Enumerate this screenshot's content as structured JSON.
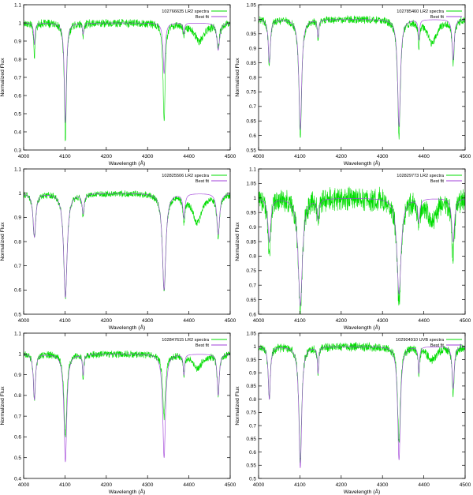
{
  "colors": {
    "observed": "#00dd00",
    "fit": "#a040d8",
    "fit_overlap": "#7a8ab4",
    "axis": "#000000"
  },
  "chart_data": [
    {
      "type": "line",
      "xlabel": "Wavelength (Å)",
      "ylabel": "Normalized Flux",
      "xlim": [
        4000,
        4500
      ],
      "ylim": [
        0.3,
        1.1
      ],
      "xticks": [
        4000,
        4100,
        4200,
        4300,
        4400,
        4500
      ],
      "yticks": [
        0.3,
        0.4,
        0.5,
        0.6,
        0.7,
        0.8,
        0.9,
        1,
        1.1
      ],
      "legend_position": "top-right",
      "noise": 0.02,
      "series": [
        {
          "name": "102766635 LR2 spectra",
          "role": "observed"
        },
        {
          "name": "Best fit",
          "role": "fit"
        }
      ],
      "lines": [
        {
          "center": 4026,
          "depth_fit": 0.12,
          "depth_obs": 0.2,
          "width": 2
        },
        {
          "center": 4101,
          "depth_fit": 0.55,
          "depth_obs": 0.65,
          "width": 3
        },
        {
          "center": 4144,
          "depth_fit": 0.06,
          "depth_obs": 0.07,
          "width": 2
        },
        {
          "center": 4340,
          "depth_fit": 0.28,
          "depth_obs": 0.55,
          "width": 3
        },
        {
          "center": 4388,
          "depth_fit": 0.06,
          "depth_obs": 0.06,
          "width": 2
        },
        {
          "center": 4425,
          "depth_fit": 0.0,
          "depth_obs": 0.1,
          "width": 15
        },
        {
          "center": 4471,
          "depth_fit": 0.15,
          "depth_obs": 0.12,
          "width": 4
        }
      ]
    },
    {
      "type": "line",
      "xlabel": "Wavelength (Å)",
      "ylabel": "Normalized Flux",
      "xlim": [
        4000,
        4500
      ],
      "ylim": [
        0.55,
        1.05
      ],
      "xticks": [
        4000,
        4100,
        4200,
        4300,
        4400,
        4500
      ],
      "yticks": [
        0.55,
        0.6,
        0.65,
        0.7,
        0.75,
        0.8,
        0.85,
        0.9,
        0.95,
        1,
        1.05
      ],
      "legend_position": "top-right",
      "noise": 0.012,
      "series": [
        {
          "name": "102785460 LR2 spectra",
          "role": "observed"
        },
        {
          "name": "Best fit",
          "role": "fit"
        }
      ],
      "lines": [
        {
          "center": 4026,
          "depth_fit": 0.15,
          "depth_obs": 0.16,
          "width": 3
        },
        {
          "center": 4101,
          "depth_fit": 0.38,
          "depth_obs": 0.41,
          "width": 4
        },
        {
          "center": 4144,
          "depth_fit": 0.06,
          "depth_obs": 0.07,
          "width": 2
        },
        {
          "center": 4340,
          "depth_fit": 0.37,
          "depth_obs": 0.4,
          "width": 4
        },
        {
          "center": 4388,
          "depth_fit": 0.07,
          "depth_obs": 0.08,
          "width": 2
        },
        {
          "center": 4420,
          "depth_fit": 0.0,
          "depth_obs": 0.08,
          "width": 14
        },
        {
          "center": 4471,
          "depth_fit": 0.14,
          "depth_obs": 0.15,
          "width": 3
        }
      ]
    },
    {
      "type": "line",
      "xlabel": "Wavelength (Å)",
      "ylabel": "Normalized Flux",
      "xlim": [
        4000,
        4500
      ],
      "ylim": [
        0.5,
        1.1
      ],
      "xticks": [
        4000,
        4100,
        4200,
        4300,
        4400,
        4500
      ],
      "yticks": [
        0.5,
        0.6,
        0.7,
        0.8,
        0.9,
        1,
        1.1
      ],
      "legend_position": "top-right",
      "noise": 0.012,
      "series": [
        {
          "name": "102825506 LR2 spectra",
          "role": "observed"
        },
        {
          "name": "Best fit",
          "role": "fit"
        }
      ],
      "lines": [
        {
          "center": 4026,
          "depth_fit": 0.18,
          "depth_obs": 0.18,
          "width": 4
        },
        {
          "center": 4101,
          "depth_fit": 0.43,
          "depth_obs": 0.43,
          "width": 5
        },
        {
          "center": 4144,
          "depth_fit": 0.08,
          "depth_obs": 0.09,
          "width": 3
        },
        {
          "center": 4340,
          "depth_fit": 0.4,
          "depth_obs": 0.4,
          "width": 5
        },
        {
          "center": 4388,
          "depth_fit": 0.1,
          "depth_obs": 0.1,
          "width": 3
        },
        {
          "center": 4420,
          "depth_fit": 0.0,
          "depth_obs": 0.12,
          "width": 14
        },
        {
          "center": 4471,
          "depth_fit": 0.17,
          "depth_obs": 0.17,
          "width": 4
        }
      ]
    },
    {
      "type": "line",
      "xlabel": "Wavelength (Å)",
      "ylabel": "Normalized Flux",
      "xlim": [
        4000,
        4500
      ],
      "ylim": [
        0.6,
        1.1
      ],
      "xticks": [
        4000,
        4100,
        4200,
        4300,
        4400,
        4500
      ],
      "yticks": [
        0.6,
        0.65,
        0.7,
        0.75,
        0.8,
        0.85,
        0.9,
        0.95,
        1,
        1.05,
        1.1
      ],
      "legend_position": "top-right",
      "noise": 0.035,
      "series": [
        {
          "name": "102829773 LR2 spectra",
          "role": "observed"
        },
        {
          "name": "Best fit",
          "role": "fit"
        }
      ],
      "lines": [
        {
          "center": 4026,
          "depth_fit": 0.15,
          "depth_obs": 0.2,
          "width": 4
        },
        {
          "center": 4101,
          "depth_fit": 0.37,
          "depth_obs": 0.38,
          "width": 6
        },
        {
          "center": 4144,
          "depth_fit": 0.07,
          "depth_obs": 0.07,
          "width": 3
        },
        {
          "center": 4340,
          "depth_fit": 0.33,
          "depth_obs": 0.35,
          "width": 6
        },
        {
          "center": 4388,
          "depth_fit": 0.08,
          "depth_obs": 0.1,
          "width": 3
        },
        {
          "center": 4420,
          "depth_fit": 0.0,
          "depth_obs": 0.08,
          "width": 14
        },
        {
          "center": 4471,
          "depth_fit": 0.15,
          "depth_obs": 0.2,
          "width": 4
        }
      ]
    },
    {
      "type": "line",
      "xlabel": "Wavelength (Å)",
      "ylabel": "Normalized Flux",
      "xlim": [
        4000,
        4500
      ],
      "ylim": [
        0.4,
        1.1
      ],
      "xticks": [
        4000,
        4100,
        4200,
        4300,
        4400,
        4500
      ],
      "yticks": [
        0.4,
        0.5,
        0.6,
        0.7,
        0.8,
        0.9,
        1,
        1.1
      ],
      "legend_position": "top-right",
      "noise": 0.015,
      "series": [
        {
          "name": "102847615 LR2 spectra",
          "role": "observed"
        },
        {
          "name": "Best fit",
          "role": "fit"
        }
      ],
      "lines": [
        {
          "center": 4026,
          "depth_fit": 0.22,
          "depth_obs": 0.22,
          "width": 3
        },
        {
          "center": 4101,
          "depth_fit": 0.52,
          "depth_obs": 0.4,
          "width": 4
        },
        {
          "center": 4144,
          "depth_fit": 0.1,
          "depth_obs": 0.11,
          "width": 2
        },
        {
          "center": 4340,
          "depth_fit": 0.5,
          "depth_obs": 0.3,
          "width": 4
        },
        {
          "center": 4388,
          "depth_fit": 0.1,
          "depth_obs": 0.1,
          "width": 2
        },
        {
          "center": 4420,
          "depth_fit": 0.0,
          "depth_obs": 0.07,
          "width": 14
        },
        {
          "center": 4471,
          "depth_fit": 0.2,
          "depth_obs": 0.2,
          "width": 3
        }
      ]
    },
    {
      "type": "line",
      "xlabel": "Wavelength (Å)",
      "ylabel": "Normalized Flux",
      "xlim": [
        4000,
        4500
      ],
      "ylim": [
        0.5,
        1.05
      ],
      "xticks": [
        4000,
        4100,
        4200,
        4300,
        4400,
        4500
      ],
      "yticks": [
        0.5,
        0.55,
        0.6,
        0.65,
        0.7,
        0.75,
        0.8,
        0.85,
        0.9,
        0.95,
        1,
        1.05
      ],
      "legend_position": "top-right",
      "noise": 0.015,
      "series": [
        {
          "name": "102904910 UVB spectra",
          "role": "observed"
        },
        {
          "name": "Best fit",
          "role": "fit"
        }
      ],
      "lines": [
        {
          "center": 4026,
          "depth_fit": 0.2,
          "depth_obs": 0.2,
          "width": 3
        },
        {
          "center": 4101,
          "depth_fit": 0.46,
          "depth_obs": 0.44,
          "width": 4
        },
        {
          "center": 4144,
          "depth_fit": 0.1,
          "depth_obs": 0.1,
          "width": 2
        },
        {
          "center": 4340,
          "depth_fit": 0.43,
          "depth_obs": 0.36,
          "width": 4
        },
        {
          "center": 4388,
          "depth_fit": 0.1,
          "depth_obs": 0.1,
          "width": 2
        },
        {
          "center": 4420,
          "depth_fit": 0.0,
          "depth_obs": 0.05,
          "width": 14
        },
        {
          "center": 4471,
          "depth_fit": 0.16,
          "depth_obs": 0.18,
          "width": 3
        }
      ]
    }
  ]
}
